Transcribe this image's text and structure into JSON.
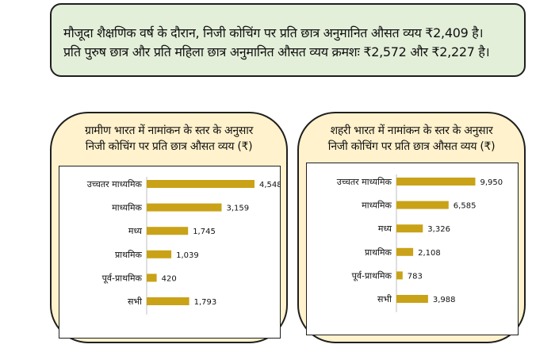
{
  "summary": {
    "line1": "मौजूदा शैक्षणिक वर्ष के दौरान, निजी कोचिंग पर प्रति छात्र अनुमानित औसत व्यय ₹2,409 है।",
    "line2": "प्रति पुरुष छात्र और प्रति महिला छात्र अनुमानित औसत व्यय क्रमशः ₹2,572 और ₹2,227 है।"
  },
  "colors": {
    "summary_bg": "#e3efd9",
    "panel_bg": "#fff2cc",
    "bar": "#c9a217",
    "axis": "#bfbfbf"
  },
  "chart_data": [
    {
      "type": "bar",
      "orientation": "horizontal",
      "title_lines": [
        "ग्रामीण भारत में नामांकन के स्तर के अनुसार",
        "निजी कोचिंग पर प्रति छात्र औसत व्यय (₹)"
      ],
      "categories": [
        "उच्चतर माध्यमिक",
        "माध्यमिक",
        "मध्य",
        "प्राथमिक",
        "पूर्व-प्राथमिक",
        "सभी"
      ],
      "values": [
        4548,
        3159,
        1745,
        1039,
        420,
        1793
      ],
      "value_labels": [
        "4,548",
        "3,159",
        "1,745",
        "1,039",
        "420",
        "1,793"
      ],
      "xlim": [
        0,
        4548
      ],
      "grid": false,
      "legend": "none"
    },
    {
      "type": "bar",
      "orientation": "horizontal",
      "title_lines": [
        "शहरी भारत में नामांकन के स्तर के अनुसार",
        "निजी कोचिंग पर प्रति छात्र औसत व्यय (₹)"
      ],
      "categories": [
        "उच्चतर माध्यमिक",
        "माध्यमिक",
        "मध्य",
        "प्राथमिक",
        "पूर्व-प्राथमिक",
        "सभी"
      ],
      "values": [
        9950,
        6585,
        3326,
        2108,
        783,
        3988
      ],
      "value_labels": [
        "9,950",
        "6,585",
        "3,326",
        "2,108",
        "783",
        "3,988"
      ],
      "xlim": [
        0,
        10000
      ],
      "grid": false,
      "legend": "none"
    }
  ]
}
